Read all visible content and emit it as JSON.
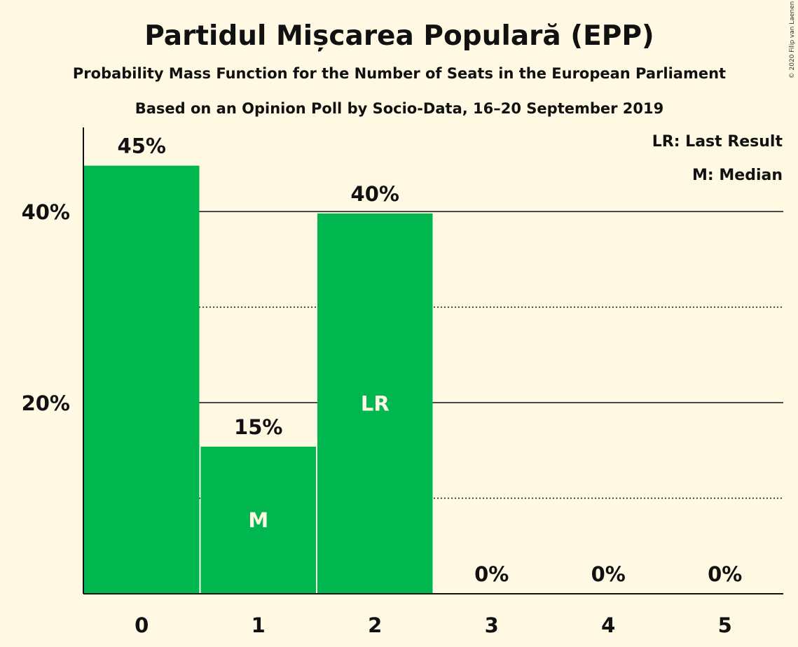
{
  "chart_data": {
    "type": "bar",
    "title": "Partidul Mișcarea Populară (EPP)",
    "subtitle": "Probability Mass Function for the Number of Seats in the European Parliament",
    "subtitle2": "Based on an Opinion Poll by Socio-Data, 16–20 September 2019",
    "copyright": "© 2020 Filip van Laenen",
    "categories": [
      "0",
      "1",
      "2",
      "3",
      "4",
      "5"
    ],
    "values": [
      44.8,
      15.4,
      39.8,
      0,
      0,
      0
    ],
    "value_labels": [
      "45%",
      "15%",
      "40%",
      "0%",
      "0%",
      "0%"
    ],
    "markers": [
      {
        "category": "1",
        "label": "M"
      },
      {
        "category": "2",
        "label": "LR"
      }
    ],
    "ylim": [
      0,
      48.8
    ],
    "yticks_major": [
      20,
      40
    ],
    "ytick_labels": [
      "20%",
      "40%"
    ],
    "yticks_minor": [
      10,
      30
    ],
    "legend": [
      "LR: Last Result",
      "M: Median"
    ],
    "legend_position": "top-right",
    "bar_color": "#00b74f",
    "background_color": "#fff9e3"
  }
}
